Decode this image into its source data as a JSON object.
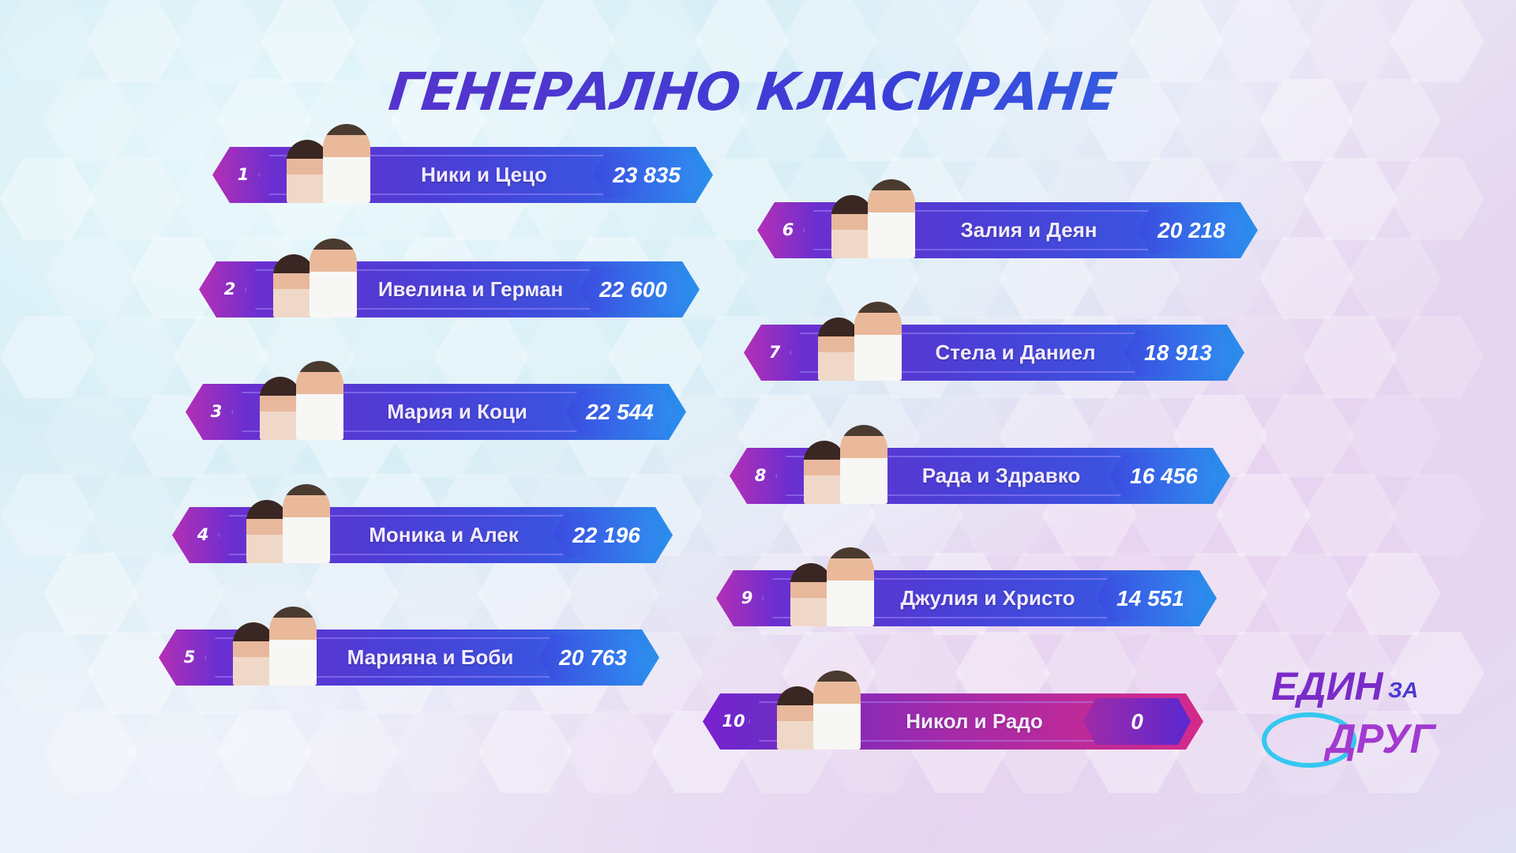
{
  "title": "ГЕНЕРАЛНО КЛАСИРАНЕ",
  "colors": {
    "bar_start": "#b42fb5",
    "bar_mid": "#4b3fd6",
    "bar_end": "#2a8fec",
    "last_bar": "#d42a8a"
  },
  "standings": [
    {
      "rank": "1",
      "name": "Ники и Цецо",
      "score": "23 835"
    },
    {
      "rank": "2",
      "name": "Ивелина и Герман",
      "score": "22 600"
    },
    {
      "rank": "3",
      "name": "Мария и Коци",
      "score": "22 544"
    },
    {
      "rank": "4",
      "name": "Моника и Алек",
      "score": "22 196"
    },
    {
      "rank": "5",
      "name": "Марияна и Боби",
      "score": "20 763"
    },
    {
      "rank": "6",
      "name": "Залия и Деян",
      "score": "20 218"
    },
    {
      "rank": "7",
      "name": "Стела и Даниел",
      "score": "18 913"
    },
    {
      "rank": "8",
      "name": "Рада и Здравко",
      "score": "16 456"
    },
    {
      "rank": "9",
      "name": "Джулия и Христо",
      "score": "14 551"
    },
    {
      "rank": "10",
      "name": "Никол и Радо",
      "score": "0"
    }
  ],
  "logo": {
    "line1": "ЕДИН",
    "line2": "ЗА",
    "line3": "ДРУГ"
  }
}
